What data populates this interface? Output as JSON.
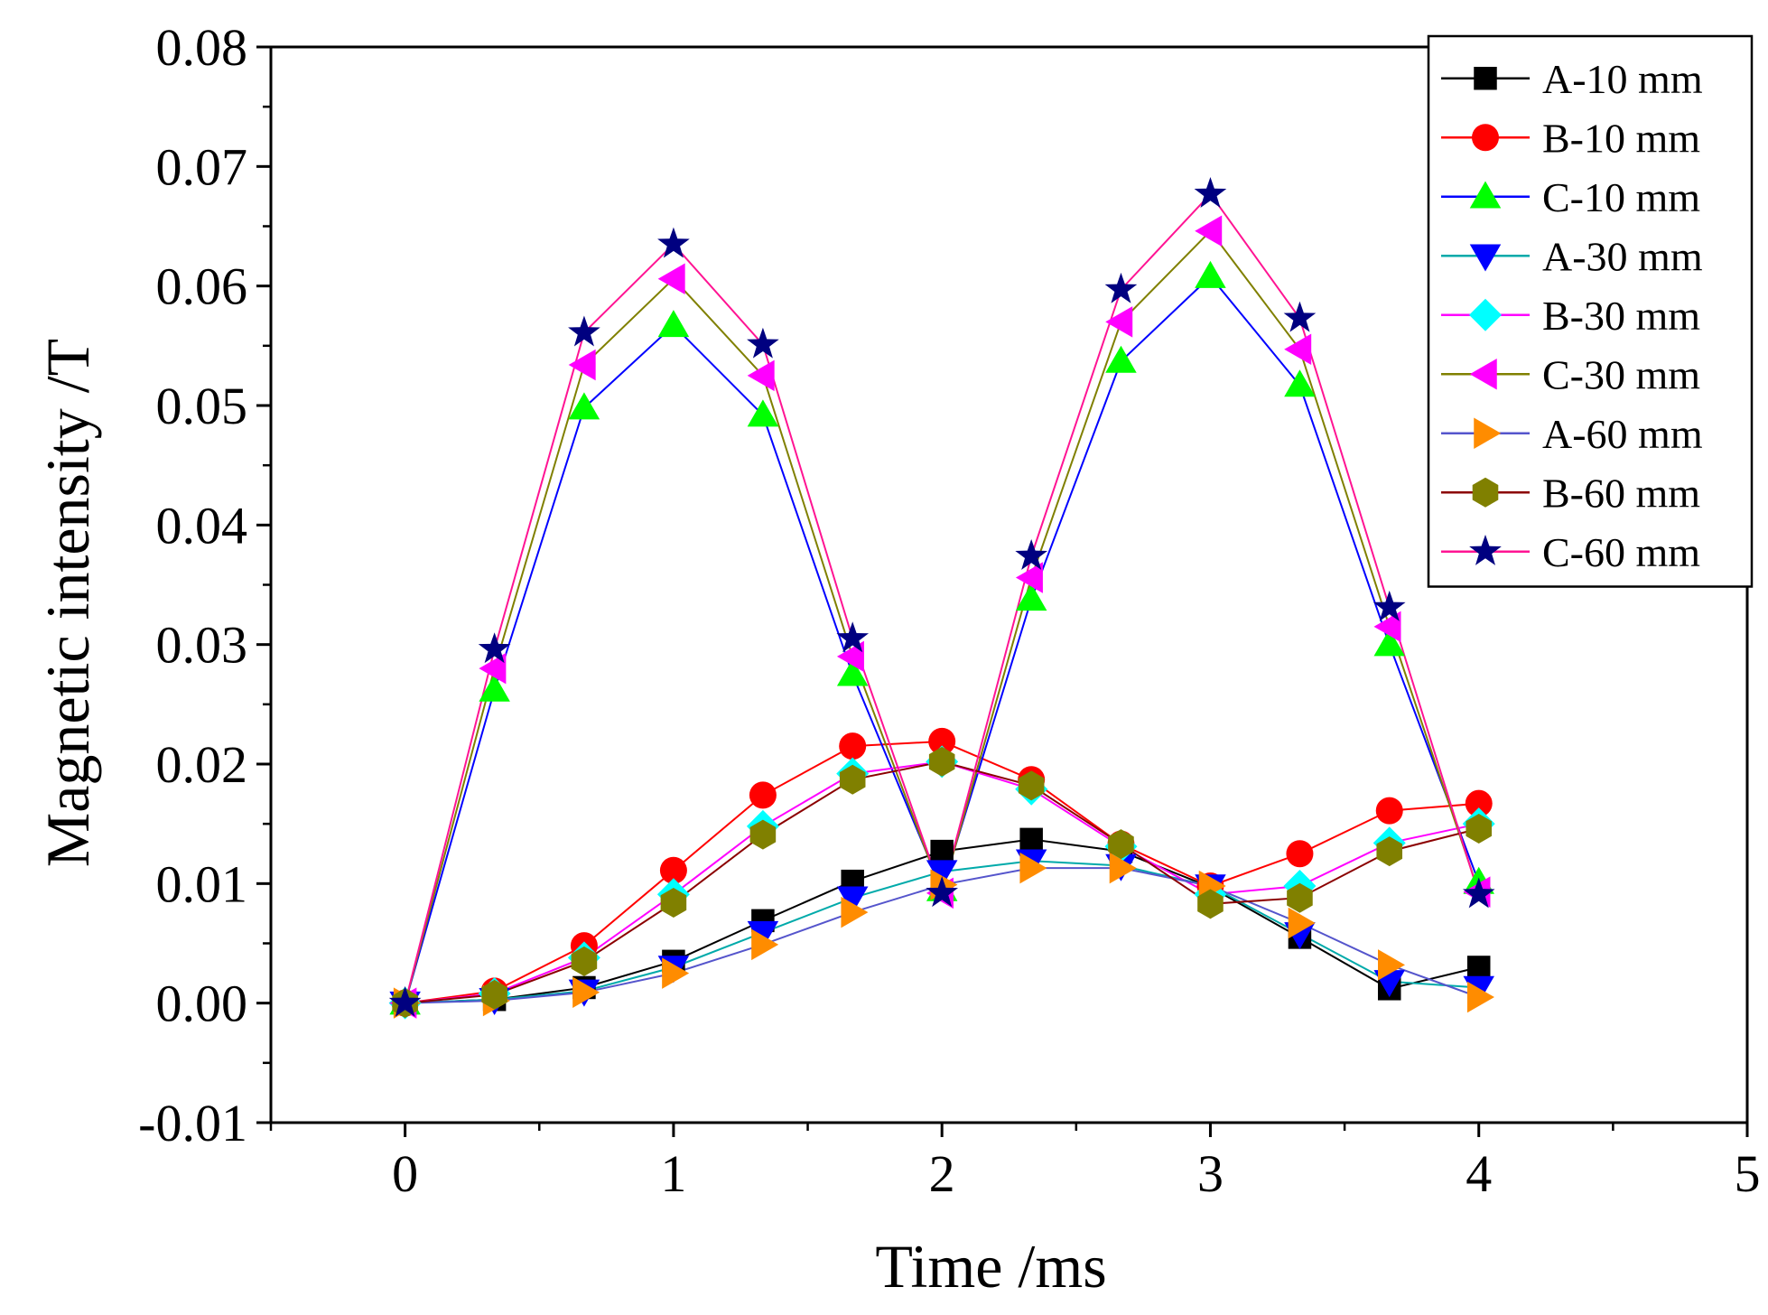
{
  "chart_data": {
    "type": "line",
    "title": "",
    "xlabel": "Time /ms",
    "ylabel": "Magnetic intensity /T",
    "xlim": [
      -0.5,
      5
    ],
    "ylim": [
      -0.01,
      0.08
    ],
    "xticks": [
      0,
      1,
      2,
      3,
      4,
      5
    ],
    "xtick_labels": [
      "0",
      "1",
      "2",
      "3",
      "4",
      "5"
    ],
    "yticks": [
      -0.01,
      0.0,
      0.01,
      0.02,
      0.03,
      0.04,
      0.05,
      0.06,
      0.07,
      0.08
    ],
    "ytick_labels": [
      "-0.01",
      "0.00",
      "0.01",
      "0.02",
      "0.03",
      "0.04",
      "0.05",
      "0.06",
      "0.07",
      "0.08"
    ],
    "grid": false,
    "legend_position": "top-right",
    "x": [
      0,
      0.333,
      0.667,
      1,
      1.333,
      1.667,
      2,
      2.333,
      2.667,
      3,
      3.333,
      3.667,
      4
    ],
    "series": [
      {
        "name": "A-10 mm",
        "marker": "square",
        "marker_color": "#000000",
        "line_color": "#000000",
        "values": [
          0.0,
          0.0003,
          0.0013,
          0.0035,
          0.0069,
          0.0102,
          0.0127,
          0.0137,
          0.0127,
          0.0097,
          0.0055,
          0.0012,
          0.003
        ]
      },
      {
        "name": "B-10 mm",
        "marker": "circle",
        "marker_color": "#ff0000",
        "line_color": "#ff0000",
        "values": [
          0.0,
          0.001,
          0.0048,
          0.0111,
          0.0174,
          0.0215,
          0.0219,
          0.0187,
          0.0133,
          0.0098,
          0.0125,
          0.0161,
          0.0167
        ]
      },
      {
        "name": "C-10 mm",
        "marker": "triangle-up",
        "marker_color": "#00ff00",
        "line_color": "#0000ff",
        "values": [
          0.0,
          0.0262,
          0.0498,
          0.0567,
          0.0492,
          0.0275,
          0.0095,
          0.0338,
          0.0537,
          0.0608,
          0.0517,
          0.03,
          0.0101
        ]
      },
      {
        "name": "A-30 mm",
        "marker": "triangle-down",
        "marker_color": "#0000ff",
        "line_color": "#00aaaa",
        "values": [
          0.0,
          0.0003,
          0.001,
          0.003,
          0.0059,
          0.0088,
          0.011,
          0.0119,
          0.0115,
          0.0098,
          0.0058,
          0.0018,
          0.0013
        ]
      },
      {
        "name": "B-30 mm",
        "marker": "diamond",
        "marker_color": "#00ffff",
        "line_color": "#ff00ff",
        "values": [
          0.0,
          0.0008,
          0.0038,
          0.0091,
          0.0148,
          0.0192,
          0.0202,
          0.0179,
          0.0131,
          0.0091,
          0.0098,
          0.0134,
          0.015
        ]
      },
      {
        "name": "C-30 mm",
        "marker": "triangle-left",
        "marker_color": "#ff00ff",
        "line_color": "#808000",
        "values": [
          0.0,
          0.028,
          0.0534,
          0.0606,
          0.0525,
          0.029,
          0.0092,
          0.0356,
          0.057,
          0.0646,
          0.0547,
          0.0315,
          0.0093
        ]
      },
      {
        "name": "A-60 mm",
        "marker": "triangle-right",
        "marker_color": "#ff8c00",
        "line_color": "#5555cc",
        "values": [
          0.0,
          0.0002,
          0.0009,
          0.0025,
          0.0049,
          0.0076,
          0.0099,
          0.0113,
          0.0113,
          0.0098,
          0.0067,
          0.0032,
          0.0005
        ]
      },
      {
        "name": "B-60 mm",
        "marker": "hexagon",
        "marker_color": "#808000",
        "line_color": "#8b0000",
        "values": [
          0.0,
          0.0007,
          0.0035,
          0.0084,
          0.0141,
          0.0187,
          0.0202,
          0.0182,
          0.0133,
          0.0083,
          0.0088,
          0.0127,
          0.0146
        ]
      },
      {
        "name": "C-60 mm",
        "marker": "star",
        "marker_color": "#000080",
        "line_color": "#ff1493",
        "values": [
          0.0,
          0.0296,
          0.0561,
          0.0635,
          0.0551,
          0.0305,
          0.0092,
          0.0374,
          0.0597,
          0.0677,
          0.0573,
          0.0331,
          0.0091
        ]
      }
    ]
  }
}
